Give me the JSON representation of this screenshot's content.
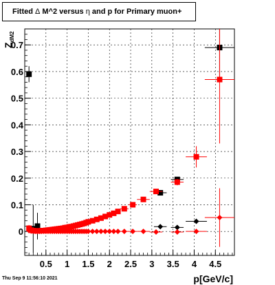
{
  "title_prefix": "Fitted ",
  "title_symbol1": "Δ",
  "title_middle": " M^2 versus ",
  "title_symbol2": "η",
  "title_suffix": " and p for Primary muon+",
  "footer": "Thu Sep  9 11:56:10 2021",
  "chart_data": {
    "type": "scatter",
    "title": "Fitted Δ M^2 versus η and p for Primary muon+",
    "xlabel": "p[GeV/c]",
    "ylabel": "Z_{dM2}",
    "xlim": [
      0.0,
      4.95
    ],
    "ylim": [
      -0.09,
      0.76
    ],
    "grid": true,
    "x_ticks": [
      0.5,
      1,
      1.5,
      2,
      2.5,
      3,
      3.5,
      4,
      4.5
    ],
    "x_tick_labels": [
      "0.5",
      "1",
      "1.5",
      "2",
      "2.5",
      "3",
      "3.5",
      "4",
      "4.5"
    ],
    "y_ticks": [
      0,
      0.1,
      0.2,
      0.3,
      0.4,
      0.5,
      0.6,
      0.7
    ],
    "y_tick_labels": [
      "0",
      "0.1",
      "0.2",
      "0.3",
      "0.4",
      "0.5",
      "0.6",
      "0.7"
    ],
    "series": [
      {
        "color": "#000000",
        "marker": "square",
        "x": [
          0.1,
          0.2,
          0.3,
          3.2,
          3.6,
          4.6
        ],
        "y": [
          0.59,
          0.01,
          0.02,
          0.145,
          0.195,
          0.69
        ],
        "xerr": [
          0.05,
          0.05,
          0.05,
          0.15,
          0.15,
          0.35
        ],
        "yerr": [
          0.03,
          0.09,
          0.05,
          0.005,
          0.006,
          0.12
        ]
      },
      {
        "color": "#000000",
        "marker": "circle",
        "x": [
          3.2,
          3.6,
          4.05
        ],
        "y": [
          0.018,
          0.015,
          0.038
        ],
        "xerr": [
          0.15,
          0.15,
          0.25
        ],
        "yerr": [
          0.004,
          0.005,
          0.008
        ]
      },
      {
        "color": "#ff0000",
        "marker": "square",
        "x": [
          0.1,
          0.15,
          0.2,
          0.25,
          0.3,
          0.35,
          0.4,
          0.45,
          0.5,
          0.55,
          0.6,
          0.65,
          0.7,
          0.75,
          0.8,
          0.85,
          0.9,
          0.95,
          1.0,
          1.05,
          1.1,
          1.15,
          1.2,
          1.25,
          1.3,
          1.35,
          1.4,
          1.45,
          1.5,
          1.6,
          1.7,
          1.8,
          1.9,
          2.0,
          2.1,
          2.2,
          2.35,
          2.55,
          2.8,
          3.1,
          3.6,
          4.05,
          4.6
        ],
        "y": [
          0.012,
          0.005,
          0.003,
          0.002,
          0.002,
          0.002,
          0.003,
          0.003,
          0.004,
          0.005,
          0.006,
          0.007,
          0.008,
          0.009,
          0.01,
          0.011,
          0.012,
          0.014,
          0.015,
          0.017,
          0.018,
          0.02,
          0.022,
          0.024,
          0.026,
          0.028,
          0.03,
          0.033,
          0.036,
          0.04,
          0.045,
          0.05,
          0.056,
          0.062,
          0.068,
          0.075,
          0.085,
          0.1,
          0.12,
          0.15,
          0.185,
          0.28,
          0.57
        ],
        "xerr": [
          0.025,
          0.025,
          0.025,
          0.025,
          0.025,
          0.025,
          0.025,
          0.025,
          0.025,
          0.025,
          0.025,
          0.025,
          0.025,
          0.025,
          0.025,
          0.025,
          0.025,
          0.025,
          0.025,
          0.025,
          0.025,
          0.025,
          0.025,
          0.025,
          0.025,
          0.025,
          0.025,
          0.025,
          0.025,
          0.05,
          0.05,
          0.05,
          0.05,
          0.05,
          0.05,
          0.05,
          0.1,
          0.1,
          0.15,
          0.15,
          0.15,
          0.25,
          0.35
        ],
        "yerr": [
          0.012,
          0.004,
          0.002,
          0.002,
          0.002,
          0.002,
          0.002,
          0.002,
          0.002,
          0.002,
          0.002,
          0.002,
          0.002,
          0.002,
          0.002,
          0.002,
          0.002,
          0.002,
          0.002,
          0.002,
          0.002,
          0.002,
          0.002,
          0.002,
          0.002,
          0.002,
          0.002,
          0.002,
          0.002,
          0.003,
          0.003,
          0.003,
          0.003,
          0.003,
          0.003,
          0.003,
          0.004,
          0.004,
          0.006,
          0.008,
          0.012,
          0.04,
          0.24
        ]
      },
      {
        "color": "#ff0000",
        "marker": "circle",
        "x": [
          0.1,
          0.15,
          0.2,
          0.25,
          0.3,
          0.35,
          0.4,
          0.45,
          0.5,
          0.55,
          0.6,
          0.65,
          0.7,
          0.75,
          0.8,
          0.85,
          0.9,
          0.95,
          1.0,
          1.05,
          1.1,
          1.15,
          1.2,
          1.25,
          1.3,
          1.35,
          1.4,
          1.45,
          1.5,
          1.6,
          1.7,
          1.8,
          1.9,
          2.0,
          2.1,
          2.2,
          2.35,
          2.55,
          2.8,
          3.1,
          3.6,
          4.05,
          4.6
        ],
        "y": [
          0.003,
          0.001,
          0.001,
          0.0,
          0.0,
          0.0,
          0.0,
          0.0,
          0.0,
          0.0,
          0.0,
          0.0,
          0.0,
          0.0,
          0.0,
          0.0,
          0.0,
          0.0,
          0.0,
          0.0,
          0.0,
          0.0,
          0.0,
          0.0,
          0.0,
          0.0,
          0.0,
          0.0,
          0.0,
          0.0,
          0.0,
          0.0,
          0.0,
          0.0,
          0.0,
          0.0,
          0.0,
          0.0,
          0.0,
          -0.002,
          -0.002,
          0.0,
          0.052
        ],
        "xerr": [
          0.025,
          0.025,
          0.025,
          0.025,
          0.025,
          0.025,
          0.025,
          0.025,
          0.025,
          0.025,
          0.025,
          0.025,
          0.025,
          0.025,
          0.025,
          0.025,
          0.025,
          0.025,
          0.025,
          0.025,
          0.025,
          0.025,
          0.025,
          0.025,
          0.025,
          0.025,
          0.025,
          0.025,
          0.025,
          0.05,
          0.05,
          0.05,
          0.05,
          0.05,
          0.05,
          0.05,
          0.1,
          0.1,
          0.15,
          0.15,
          0.15,
          0.25,
          0.35
        ],
        "yerr": [
          0.003,
          0.002,
          0.001,
          0.001,
          0.001,
          0.001,
          0.001,
          0.001,
          0.001,
          0.001,
          0.001,
          0.001,
          0.001,
          0.001,
          0.001,
          0.001,
          0.001,
          0.001,
          0.001,
          0.001,
          0.001,
          0.001,
          0.001,
          0.001,
          0.001,
          0.001,
          0.001,
          0.001,
          0.001,
          0.001,
          0.001,
          0.001,
          0.001,
          0.001,
          0.001,
          0.001,
          0.002,
          0.002,
          0.003,
          0.004,
          0.005,
          0.008,
          0.11
        ]
      }
    ]
  }
}
